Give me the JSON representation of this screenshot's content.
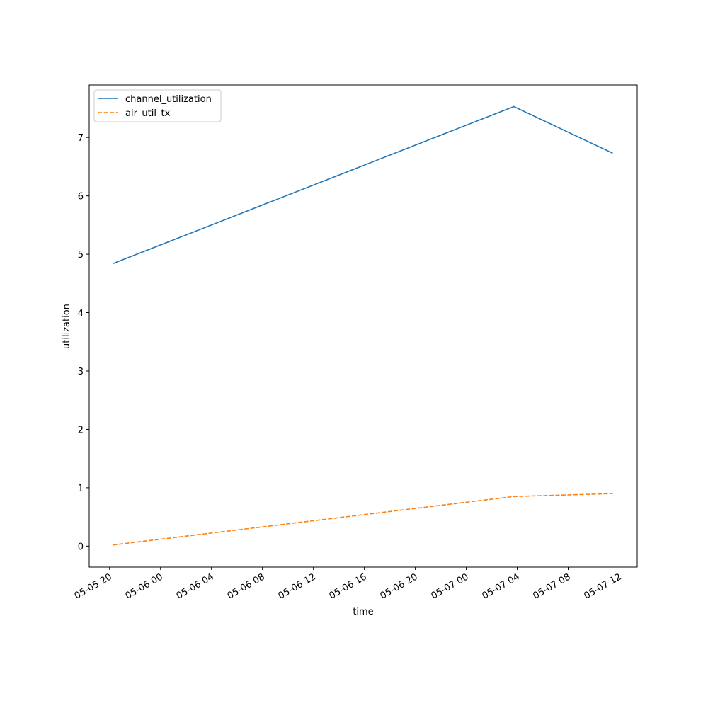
{
  "chart_data": {
    "type": "line",
    "x": [
      "05-05 20:16",
      "05-07 03:44",
      "05-07 11:30"
    ],
    "series": [
      {
        "name": "channel_utilization",
        "color": "#1f77b4",
        "linestyle": "solid",
        "values": [
          4.84,
          7.53,
          6.73
        ]
      },
      {
        "name": "air_util_tx",
        "color": "#ff7f0e",
        "linestyle": "dashed",
        "values": [
          0.02,
          0.85,
          0.9
        ]
      }
    ],
    "xlabel": "time",
    "ylabel": "utilization",
    "xlim": [
      "05-05 18:24",
      "05-07 13:25"
    ],
    "xticks": [
      "05-05 20",
      "05-06 00",
      "05-06 04",
      "05-06 08",
      "05-06 12",
      "05-06 16",
      "05-06 20",
      "05-07 00",
      "05-07 04",
      "05-07 08",
      "05-07 12"
    ],
    "ylim": [
      -0.36,
      7.9
    ],
    "yticks": [
      0,
      1,
      2,
      3,
      4,
      5,
      6,
      7
    ],
    "grid": false,
    "legend": "upper left"
  }
}
